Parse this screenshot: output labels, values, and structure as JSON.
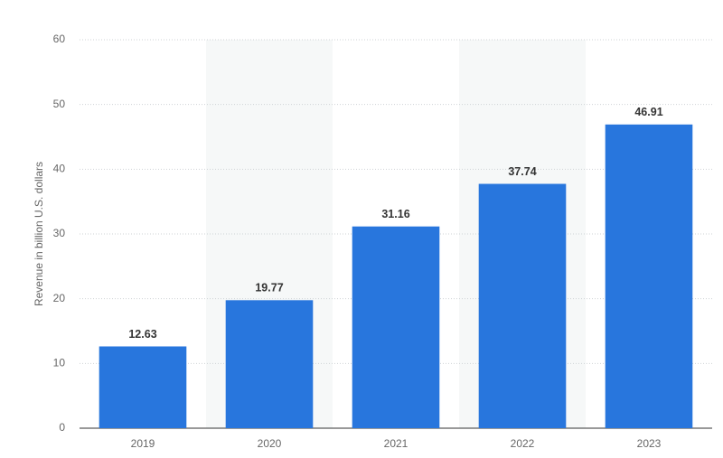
{
  "chart_data": {
    "type": "bar",
    "y_label": "Revenue in billion U.S. dollars",
    "categories": [
      "2019",
      "2020",
      "2021",
      "2022",
      "2023"
    ],
    "values": [
      12.63,
      19.77,
      31.16,
      37.74,
      46.91
    ],
    "color": "#2876dd",
    "ylim": [
      0,
      60
    ],
    "yticks": [
      0,
      10,
      20,
      30,
      40,
      50,
      60
    ],
    "grid": true
  }
}
